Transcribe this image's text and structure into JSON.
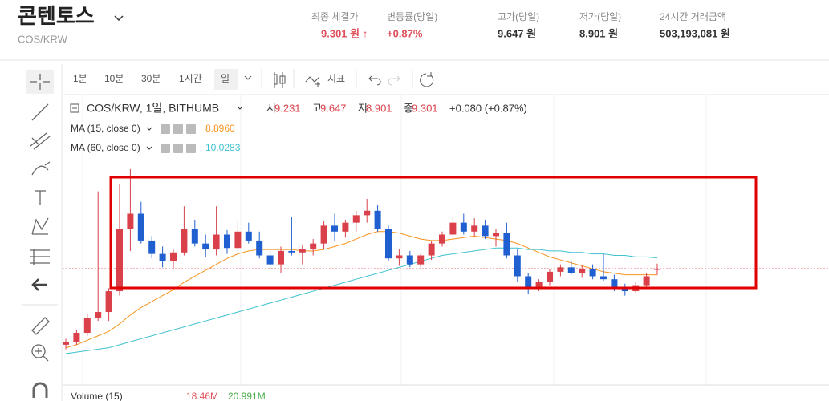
{
  "header": {
    "title": "콘텐토스",
    "pair": "COS/KRW",
    "stats": [
      {
        "label": "최종 체결가",
        "value": "9.301 원 ↑"
      },
      {
        "label": "변동률(당일)",
        "value": "+0.87%"
      },
      {
        "label": "고가(당일)",
        "value": "9.647 원"
      },
      {
        "label": "저가(당일)",
        "value": "8.901 원"
      },
      {
        "label": "24시간 거래금액",
        "value": "503,193,081 원"
      }
    ]
  },
  "toolbar": {
    "intervals": [
      "1분",
      "10분",
      "30분",
      "1시간",
      "일"
    ],
    "indicator": "지표"
  },
  "chart_data": {
    "type": "candlestick",
    "title": "COS/KRW, 1일, BITHUMB",
    "ohlc_labels": [
      "시",
      "고",
      "저",
      "종"
    ],
    "change": "+0.080 (+0.87%)",
    "ylim": [
      1.5,
      21
    ],
    "up_color": "#d9404a",
    "down_color": "#1f5fcf",
    "open": [
      4.2,
      4.4,
      5.0,
      6.0,
      6.4,
      7.8,
      12.0,
      13.0,
      11.2,
      10.3,
      9.8,
      10.4,
      12.0,
      11.0,
      10.6,
      11.6,
      10.7,
      11.8,
      11.2,
      10.2,
      9.6,
      10.5,
      10.4,
      10.6,
      11.0,
      12.2,
      11.8,
      12.4,
      12.9,
      13.2,
      12.0,
      10.0,
      10.2,
      9.6,
      10.2,
      11.0,
      11.6,
      12.4,
      11.8,
      12.2,
      11.5,
      11.7,
      10.2,
      8.8,
      8.1,
      8.4,
      9.1,
      9.4,
      9.0,
      9.3,
      8.8,
      8.6,
      8.0,
      7.8,
      8.2,
      9.231
    ],
    "high": [
      4.6,
      5.2,
      6.3,
      14.5,
      8.0,
      15.0,
      16.0,
      13.8,
      11.5,
      10.8,
      10.6,
      13.5,
      12.6,
      11.6,
      13.5,
      11.9,
      12.5,
      12.4,
      11.8,
      10.5,
      10.8,
      12.8,
      10.9,
      11.3,
      12.5,
      13.0,
      12.6,
      13.2,
      14.0,
      13.6,
      12.2,
      10.6,
      10.5,
      10.3,
      11.2,
      11.8,
      12.8,
      13.0,
      12.7,
      12.6,
      12.0,
      12.4,
      10.6,
      9.0,
      8.6,
      9.3,
      9.6,
      9.8,
      9.5,
      9.6,
      10.3,
      8.9,
      8.3,
      8.4,
      9.0,
      9.647
    ],
    "low": [
      3.9,
      4.2,
      4.8,
      5.8,
      5.8,
      7.5,
      10.5,
      11.0,
      10.0,
      9.4,
      9.3,
      10.2,
      10.8,
      10.1,
      10.2,
      10.3,
      10.5,
      11.0,
      10.0,
      9.3,
      9.0,
      10.2,
      9.6,
      10.2,
      10.6,
      11.2,
      11.4,
      11.8,
      12.4,
      11.8,
      9.8,
      9.5,
      9.4,
      9.4,
      9.9,
      10.8,
      11.3,
      11.6,
      11.5,
      11.3,
      10.8,
      10.0,
      8.4,
      7.6,
      7.8,
      8.2,
      8.8,
      8.9,
      8.7,
      8.6,
      8.5,
      7.8,
      7.5,
      7.7,
      8.0,
      8.901
    ],
    "close": [
      4.4,
      5.0,
      6.0,
      6.4,
      7.8,
      12.0,
      13.0,
      11.2,
      10.3,
      9.8,
      10.4,
      12.0,
      11.0,
      10.6,
      11.6,
      10.7,
      11.8,
      11.2,
      10.2,
      9.6,
      10.5,
      10.4,
      10.6,
      11.0,
      12.2,
      11.8,
      12.4,
      12.9,
      13.2,
      12.0,
      10.0,
      10.2,
      9.6,
      10.2,
      11.0,
      11.6,
      12.4,
      11.8,
      12.2,
      11.5,
      11.7,
      10.2,
      8.8,
      8.1,
      8.4,
      9.1,
      9.4,
      9.0,
      9.3,
      8.8,
      8.6,
      8.0,
      7.8,
      8.2,
      8.8,
      9.301
    ],
    "series": [
      {
        "name": "MA (15, close 0)",
        "color": "#f7931e",
        "last_label": "8.8960",
        "values": [
          4.0,
          4.2,
          4.5,
          4.8,
          5.1,
          5.6,
          6.2,
          6.7,
          7.1,
          7.5,
          7.9,
          8.4,
          8.8,
          9.2,
          9.6,
          10.0,
          10.3,
          10.5,
          10.6,
          10.6,
          10.6,
          10.6,
          10.5,
          10.5,
          10.6,
          10.8,
          11.0,
          11.3,
          11.6,
          11.8,
          11.8,
          11.7,
          11.5,
          11.3,
          11.2,
          11.2,
          11.3,
          11.4,
          11.5,
          11.4,
          11.3,
          11.2,
          11.0,
          10.7,
          10.4,
          10.1,
          9.9,
          9.7,
          9.5,
          9.3,
          9.1,
          9.0,
          8.9,
          8.9,
          8.9,
          8.896
        ]
      },
      {
        "name": "MA (60, close 0)",
        "color": "#3fc1d0",
        "last_label": "10.0283",
        "values": [
          3.6,
          3.7,
          3.8,
          3.9,
          4.0,
          4.2,
          4.4,
          4.6,
          4.8,
          5.0,
          5.2,
          5.4,
          5.6,
          5.8,
          6.0,
          6.2,
          6.4,
          6.6,
          6.8,
          7.0,
          7.2,
          7.4,
          7.6,
          7.8,
          8.0,
          8.2,
          8.4,
          8.6,
          8.8,
          9.0,
          9.2,
          9.4,
          9.6,
          9.8,
          10.0,
          10.2,
          10.3,
          10.4,
          10.5,
          10.6,
          10.7,
          10.7,
          10.7,
          10.6,
          10.6,
          10.5,
          10.5,
          10.4,
          10.4,
          10.3,
          10.3,
          10.2,
          10.2,
          10.1,
          10.1,
          10.0283
        ]
      }
    ],
    "volume": {
      "name": "Volume (15)",
      "value_label": "18.46M",
      "ma_label": "20.991M"
    }
  }
}
